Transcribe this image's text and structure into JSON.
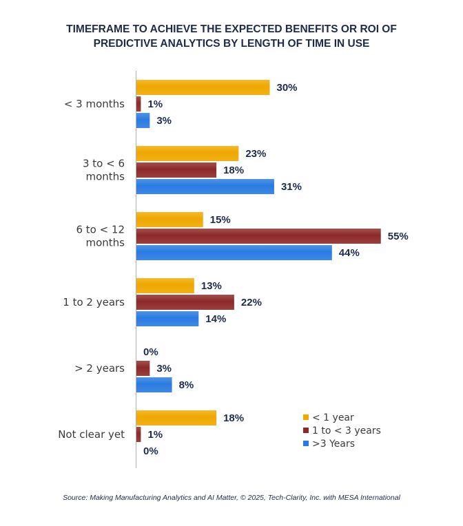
{
  "chart_data": {
    "type": "bar",
    "orientation": "horizontal",
    "title_lines": [
      "TIMEFRAME TO ACHIEVE THE EXPECTED BENEFITS OR ROI OF",
      "PREDICTIVE ANALYTICS BY LENGTH OF TIME IN USE"
    ],
    "categories": [
      [
        "< 3 months"
      ],
      [
        "3 to < 6",
        "months"
      ],
      [
        "6 to < 12",
        "months"
      ],
      [
        "1 to 2 years"
      ],
      [
        "> 2 years"
      ],
      [
        "Not clear yet"
      ]
    ],
    "series": [
      {
        "name": "< 1 year",
        "color": "#f0a800",
        "values": [
          30,
          23,
          15,
          13,
          0,
          18
        ]
      },
      {
        "name": "1 to < 3 years",
        "color": "#8c2a2a",
        "values": [
          1,
          18,
          55,
          22,
          3,
          1
        ]
      },
      {
        "name": ">3 Years",
        "color": "#2a7be0",
        "values": [
          3,
          31,
          44,
          14,
          8,
          0
        ]
      }
    ],
    "value_suffix": "%",
    "xlim": [
      0,
      60
    ],
    "legend_position": "bottom-right",
    "grid": false
  },
  "source": "Source: Making Manufacturing Analytics and AI Matter, © 2025, Tech-Clarity, Inc. with MESA International"
}
